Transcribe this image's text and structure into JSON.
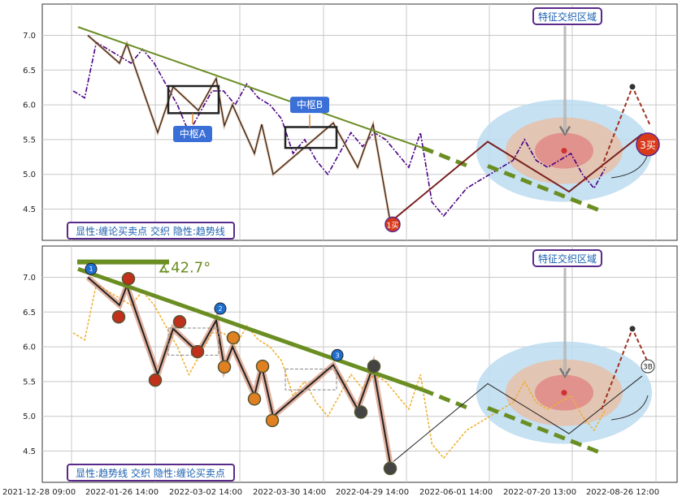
{
  "chart_data": [
    {
      "type": "line",
      "title": "",
      "panel": "top",
      "caption": "显性:缠论买卖点 交织 隐性:趋势线",
      "zone_label": "特征交织区域",
      "box_labels": [
        "中枢A",
        "中枢B"
      ],
      "buy_labels": [
        "1买",
        "3买"
      ],
      "ylim": [
        4.05,
        7.45
      ],
      "yticks": [
        "4.5",
        "5.0",
        "5.5",
        "6.0",
        "6.5",
        "7.0"
      ],
      "xticks": [
        "2021-12-28 09:00",
        "2022-01-26 14:00",
        "2022-03-02 14:00",
        "2022-03-30 14:00",
        "2022-04-29 14:00",
        "2022-06-01 14:00",
        "2022-07-20 13:00",
        "2022-08-26 12:00"
      ],
      "series": [
        {
          "values": [
            6.2,
            6.1,
            6.9,
            6.8,
            6.7,
            6.6,
            6.8,
            6.6,
            6.3,
            6.0,
            5.6,
            5.9,
            6.2,
            6.2,
            6.0,
            6.3,
            6.1,
            6.0,
            5.8,
            5.3,
            5.5,
            5.2,
            5.0,
            5.3,
            5.6,
            5.4,
            5.6,
            5.5,
            5.3,
            5.1,
            5.6,
            4.6,
            4.4,
            4.6,
            4.8,
            4.9,
            5.0,
            5.1,
            5.2,
            5.5,
            5.2,
            5.1,
            5.2,
            5.3,
            5.0,
            4.8,
            5.1
          ]
        }
      ],
      "grid": true
    },
    {
      "type": "line",
      "title": "",
      "panel": "bottom",
      "caption": "显性:趋势线 交织 隐性:缠论买卖点",
      "zone_label": "特征交织区域",
      "angle_label": "∡42.7°",
      "point_labels": [
        "1",
        "2",
        "3",
        "3B"
      ],
      "ylim": [
        4.05,
        7.45
      ],
      "yticks": [
        "4.5",
        "5.0",
        "5.5",
        "6.0",
        "6.5",
        "7.0"
      ],
      "xticks": [
        "2021-12-28 09:00",
        "2022-01-26 14:00",
        "2022-03-02 14:00",
        "2022-03-30 14:00",
        "2022-04-29 14:00",
        "2022-06-01 14:00",
        "2022-07-20 13:00",
        "2022-08-26 12:00"
      ],
      "series": [
        {
          "values": [
            6.2,
            6.1,
            6.9,
            6.8,
            6.7,
            6.6,
            6.8,
            6.6,
            6.3,
            6.0,
            5.6,
            5.9,
            6.2,
            6.2,
            6.0,
            6.3,
            6.1,
            6.0,
            5.8,
            5.3,
            5.5,
            5.2,
            5.0,
            5.3,
            5.6,
            5.4,
            5.6,
            5.5,
            5.3,
            5.1,
            5.6,
            4.6,
            4.4,
            4.6,
            4.8,
            4.9,
            5.0,
            5.1,
            5.2,
            5.5,
            5.2,
            5.1,
            5.2,
            5.3,
            5.0,
            4.8,
            5.1
          ]
        }
      ],
      "grid": true
    }
  ],
  "colors": {
    "trend": "#6b8e23",
    "price_top": "#4b0082",
    "price_bottom": "#f0b030",
    "zone_outer": "#bcdcf0",
    "zone_mid": "#e6c0a8",
    "zone_inner": "#e08080",
    "box_blue": "#3a6fd8",
    "buy_red": "#d93a1a"
  }
}
